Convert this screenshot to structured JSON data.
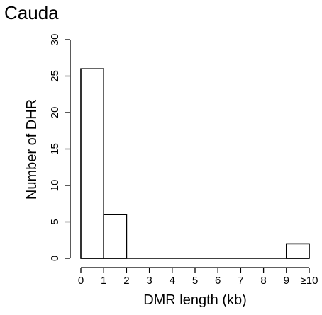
{
  "chart_data": {
    "type": "bar",
    "title": "Cauda",
    "xlabel": "DMR length (kb)",
    "ylabel": "Number of DHR",
    "categories": [
      "0-1",
      "1-2",
      "2-3",
      "3-4",
      "4-5",
      "5-6",
      "6-7",
      "7-8",
      "8-9",
      "≥9"
    ],
    "values": [
      26,
      6,
      0,
      0,
      0,
      0,
      0,
      0,
      0,
      2
    ],
    "x_tick_labels": [
      "0",
      "1",
      "2",
      "3",
      "4",
      "5",
      "6",
      "7",
      "8",
      "9",
      "≥10"
    ],
    "y_ticks": [
      0,
      5,
      10,
      15,
      20,
      25,
      30
    ],
    "xlim": [
      0,
      10
    ],
    "ylim": [
      0,
      30
    ],
    "grid": false,
    "colors": {
      "bar_fill": "#ffffff",
      "bar_stroke": "#000000",
      "axis": "#000000"
    }
  }
}
